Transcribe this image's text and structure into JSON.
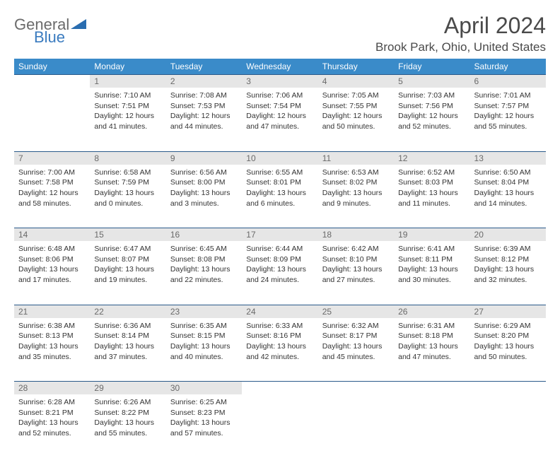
{
  "logo": {
    "general": "General",
    "blue": "Blue"
  },
  "title": "April 2024",
  "location": "Brook Park, Ohio, United States",
  "colors": {
    "header_bg": "#3a8bc9",
    "daynum_bg": "#e6e6e6",
    "border": "#2a5a8a",
    "text": "#333333",
    "title_text": "#4a4a4a",
    "logo_gray": "#6b6b6b",
    "logo_blue": "#3a7bbf"
  },
  "day_names": [
    "Sunday",
    "Monday",
    "Tuesday",
    "Wednesday",
    "Thursday",
    "Friday",
    "Saturday"
  ],
  "weeks": [
    [
      null,
      {
        "n": "1",
        "sunrise": "7:10 AM",
        "sunset": "7:51 PM",
        "daylight": "12 hours and 41 minutes."
      },
      {
        "n": "2",
        "sunrise": "7:08 AM",
        "sunset": "7:53 PM",
        "daylight": "12 hours and 44 minutes."
      },
      {
        "n": "3",
        "sunrise": "7:06 AM",
        "sunset": "7:54 PM",
        "daylight": "12 hours and 47 minutes."
      },
      {
        "n": "4",
        "sunrise": "7:05 AM",
        "sunset": "7:55 PM",
        "daylight": "12 hours and 50 minutes."
      },
      {
        "n": "5",
        "sunrise": "7:03 AM",
        "sunset": "7:56 PM",
        "daylight": "12 hours and 52 minutes."
      },
      {
        "n": "6",
        "sunrise": "7:01 AM",
        "sunset": "7:57 PM",
        "daylight": "12 hours and 55 minutes."
      }
    ],
    [
      {
        "n": "7",
        "sunrise": "7:00 AM",
        "sunset": "7:58 PM",
        "daylight": "12 hours and 58 minutes."
      },
      {
        "n": "8",
        "sunrise": "6:58 AM",
        "sunset": "7:59 PM",
        "daylight": "13 hours and 0 minutes."
      },
      {
        "n": "9",
        "sunrise": "6:56 AM",
        "sunset": "8:00 PM",
        "daylight": "13 hours and 3 minutes."
      },
      {
        "n": "10",
        "sunrise": "6:55 AM",
        "sunset": "8:01 PM",
        "daylight": "13 hours and 6 minutes."
      },
      {
        "n": "11",
        "sunrise": "6:53 AM",
        "sunset": "8:02 PM",
        "daylight": "13 hours and 9 minutes."
      },
      {
        "n": "12",
        "sunrise": "6:52 AM",
        "sunset": "8:03 PM",
        "daylight": "13 hours and 11 minutes."
      },
      {
        "n": "13",
        "sunrise": "6:50 AM",
        "sunset": "8:04 PM",
        "daylight": "13 hours and 14 minutes."
      }
    ],
    [
      {
        "n": "14",
        "sunrise": "6:48 AM",
        "sunset": "8:06 PM",
        "daylight": "13 hours and 17 minutes."
      },
      {
        "n": "15",
        "sunrise": "6:47 AM",
        "sunset": "8:07 PM",
        "daylight": "13 hours and 19 minutes."
      },
      {
        "n": "16",
        "sunrise": "6:45 AM",
        "sunset": "8:08 PM",
        "daylight": "13 hours and 22 minutes."
      },
      {
        "n": "17",
        "sunrise": "6:44 AM",
        "sunset": "8:09 PM",
        "daylight": "13 hours and 24 minutes."
      },
      {
        "n": "18",
        "sunrise": "6:42 AM",
        "sunset": "8:10 PM",
        "daylight": "13 hours and 27 minutes."
      },
      {
        "n": "19",
        "sunrise": "6:41 AM",
        "sunset": "8:11 PM",
        "daylight": "13 hours and 30 minutes."
      },
      {
        "n": "20",
        "sunrise": "6:39 AM",
        "sunset": "8:12 PM",
        "daylight": "13 hours and 32 minutes."
      }
    ],
    [
      {
        "n": "21",
        "sunrise": "6:38 AM",
        "sunset": "8:13 PM",
        "daylight": "13 hours and 35 minutes."
      },
      {
        "n": "22",
        "sunrise": "6:36 AM",
        "sunset": "8:14 PM",
        "daylight": "13 hours and 37 minutes."
      },
      {
        "n": "23",
        "sunrise": "6:35 AM",
        "sunset": "8:15 PM",
        "daylight": "13 hours and 40 minutes."
      },
      {
        "n": "24",
        "sunrise": "6:33 AM",
        "sunset": "8:16 PM",
        "daylight": "13 hours and 42 minutes."
      },
      {
        "n": "25",
        "sunrise": "6:32 AM",
        "sunset": "8:17 PM",
        "daylight": "13 hours and 45 minutes."
      },
      {
        "n": "26",
        "sunrise": "6:31 AM",
        "sunset": "8:18 PM",
        "daylight": "13 hours and 47 minutes."
      },
      {
        "n": "27",
        "sunrise": "6:29 AM",
        "sunset": "8:20 PM",
        "daylight": "13 hours and 50 minutes."
      }
    ],
    [
      {
        "n": "28",
        "sunrise": "6:28 AM",
        "sunset": "8:21 PM",
        "daylight": "13 hours and 52 minutes."
      },
      {
        "n": "29",
        "sunrise": "6:26 AM",
        "sunset": "8:22 PM",
        "daylight": "13 hours and 55 minutes."
      },
      {
        "n": "30",
        "sunrise": "6:25 AM",
        "sunset": "8:23 PM",
        "daylight": "13 hours and 57 minutes."
      },
      null,
      null,
      null,
      null
    ]
  ],
  "labels": {
    "sunrise": "Sunrise:",
    "sunset": "Sunset:",
    "daylight": "Daylight:"
  }
}
